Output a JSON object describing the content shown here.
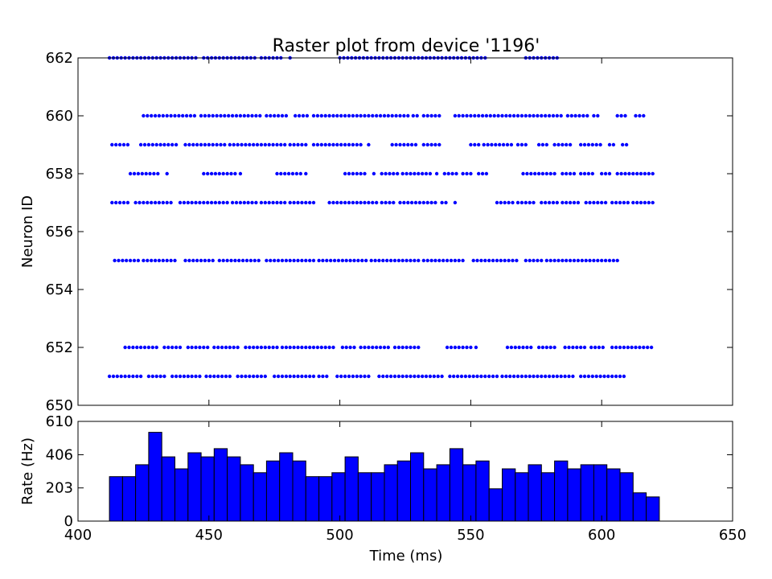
{
  "chart_data": [
    {
      "type": "scatter",
      "title": "Raster plot from device '1196'",
      "xlabel": "",
      "ylabel": "Neuron ID",
      "xlim": [
        400,
        650
      ],
      "ylim": [
        650,
        662
      ],
      "yticks": [
        "650",
        "652",
        "654",
        "656",
        "658",
        "660",
        "662"
      ],
      "marker_color": "#0000ff",
      "series": [
        {
          "neuron": 662,
          "spans": [
            [
              412,
              446
            ],
            [
              448,
              468
            ],
            [
              470,
              478
            ],
            [
              481,
              482
            ],
            [
              500,
              556
            ],
            [
              571,
              584
            ]
          ]
        },
        {
          "neuron": 660,
          "spans": [
            [
              425,
              445
            ],
            [
              447,
              470
            ],
            [
              472,
              480
            ],
            [
              483,
              488
            ],
            [
              490,
              526
            ],
            [
              528,
              530
            ],
            [
              532,
              538
            ],
            [
              544,
              585
            ],
            [
              587,
              595
            ],
            [
              597,
              599
            ],
            [
              606,
              610
            ],
            [
              613,
              617
            ]
          ]
        },
        {
          "neuron": 659,
          "spans": [
            [
              413,
              420
            ],
            [
              424,
              438
            ],
            [
              441,
              456
            ],
            [
              458,
              479
            ],
            [
              481,
              488
            ],
            [
              490,
              508
            ],
            [
              511,
              512
            ],
            [
              515,
              514
            ],
            [
              520,
              529
            ],
            [
              532,
              538
            ],
            [
              550,
              553
            ],
            [
              555,
              566
            ],
            [
              568,
              572
            ],
            [
              576,
              579
            ],
            [
              582,
              589
            ],
            [
              592,
              600
            ],
            [
              603,
              605
            ],
            [
              608,
              610
            ]
          ]
        },
        {
          "neuron": 658,
          "spans": [
            [
              420,
              431
            ],
            [
              434,
              435
            ],
            [
              448,
              460
            ],
            [
              462,
              463
            ],
            [
              476,
              485
            ],
            [
              487,
              487
            ],
            [
              502,
              510
            ],
            [
              513,
              514
            ],
            [
              516,
              522
            ],
            [
              524,
              535
            ],
            [
              537,
              538
            ],
            [
              540,
              545
            ],
            [
              547,
              551
            ],
            [
              553,
              557
            ],
            [
              570,
              583
            ],
            [
              585,
              590
            ],
            [
              592,
              597
            ],
            [
              600,
              604
            ],
            [
              606,
              620
            ]
          ]
        },
        {
          "neuron": 657,
          "spans": [
            [
              413,
              420
            ],
            [
              422,
              436
            ],
            [
              439,
              457
            ],
            [
              459,
              468
            ],
            [
              470,
              479
            ],
            [
              481,
              490
            ],
            [
              496,
              514
            ],
            [
              516,
              521
            ],
            [
              523,
              537
            ],
            [
              539,
              541
            ],
            [
              544,
              545
            ],
            [
              560,
              566
            ],
            [
              568,
              575
            ],
            [
              577,
              583
            ],
            [
              585,
              592
            ],
            [
              594,
              602
            ],
            [
              604,
              610
            ],
            [
              612,
              620
            ]
          ]
        },
        {
          "neuron": 655,
          "spans": [
            [
              414,
              423
            ],
            [
              425,
              438
            ],
            [
              441,
              452
            ],
            [
              454,
              470
            ],
            [
              472,
              490
            ],
            [
              492,
              510
            ],
            [
              512,
              530
            ],
            [
              532,
              548
            ],
            [
              551,
              568
            ],
            [
              571,
              577
            ],
            [
              579,
              606
            ]
          ]
        },
        {
          "neuron": 652,
          "spans": [
            [
              418,
              430
            ],
            [
              433,
              440
            ],
            [
              442,
              450
            ],
            [
              452,
              462
            ],
            [
              464,
              476
            ],
            [
              478,
              498
            ],
            [
              501,
              506
            ],
            [
              508,
              519
            ],
            [
              521,
              531
            ],
            [
              541,
              550
            ],
            [
              552,
              553
            ],
            [
              564,
              573
            ],
            [
              576,
              583
            ],
            [
              586,
              594
            ],
            [
              596,
              601
            ],
            [
              604,
              620
            ]
          ]
        },
        {
          "neuron": 651,
          "spans": [
            [
              412,
              424
            ],
            [
              427,
              434
            ],
            [
              436,
              447
            ],
            [
              449,
              458
            ],
            [
              461,
              472
            ],
            [
              475,
              490
            ],
            [
              492,
              496
            ],
            [
              499,
              512
            ],
            [
              515,
              540
            ],
            [
              542,
              560
            ],
            [
              562,
              590
            ],
            [
              592,
              609
            ]
          ]
        }
      ]
    },
    {
      "type": "bar",
      "title": "",
      "xlabel": "Time (ms)",
      "ylabel": "Rate (Hz)",
      "xlim": [
        400,
        650
      ],
      "ylim": [
        0,
        610
      ],
      "xticks": [
        "400",
        "450",
        "500",
        "550",
        "600",
        "650"
      ],
      "yticks": [
        "0",
        "203",
        "406",
        "610"
      ],
      "bin_start": 412,
      "bin_width": 5,
      "bar_color": "#0000ff",
      "values": [
        272,
        272,
        345,
        543,
        393,
        320,
        418,
        393,
        443,
        393,
        345,
        296,
        368,
        418,
        368,
        272,
        272,
        296,
        393,
        296,
        296,
        345,
        368,
        418,
        320,
        345,
        443,
        345,
        368,
        198,
        320,
        296,
        345,
        296,
        368,
        320,
        345,
        345,
        320,
        296,
        173,
        148
      ]
    }
  ]
}
